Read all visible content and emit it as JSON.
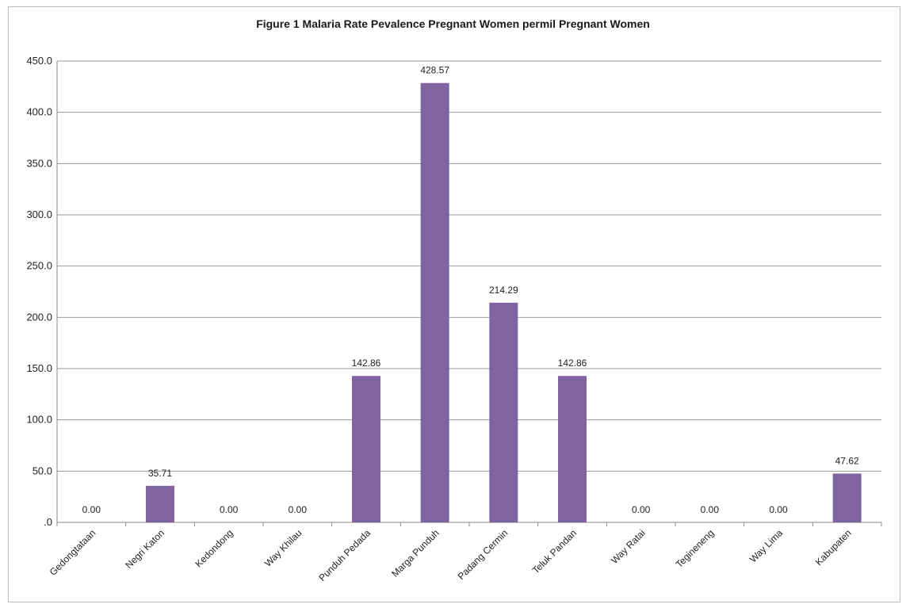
{
  "chart_data": {
    "type": "bar",
    "title": "Figure 1 Malaria Rate Pevalence Pregnant Women permil Pregnant Women",
    "xlabel": "",
    "ylabel": "",
    "ylim": [
      0,
      450
    ],
    "yticks": [
      ".0",
      "50.0",
      "100.0",
      "150.0",
      "200.0",
      "250.0",
      "300.0",
      "350.0",
      "400.0",
      "450.0"
    ],
    "grid": true,
    "bar_color": "#8064a2",
    "categories": [
      "Gedongtataan",
      "Negri Katon",
      "Kedondong",
      "Way Khilau",
      "Punduh Pedada",
      "Marga Punduh",
      "Padang Cermin",
      "Teluk Pandan",
      "Way Ratai",
      "Tegineneng",
      "Way Lima",
      "Kabupaten"
    ],
    "values": [
      0.0,
      35.71,
      0.0,
      0.0,
      142.86,
      428.57,
      214.29,
      142.86,
      0.0,
      0.0,
      0.0,
      47.62
    ],
    "data_labels": [
      "0.00",
      "35.71",
      "0.00",
      "0.00",
      "142.86",
      "428.57",
      "214.29",
      "142.86",
      "0.00",
      "0.00",
      "0.00",
      "47.62"
    ]
  }
}
